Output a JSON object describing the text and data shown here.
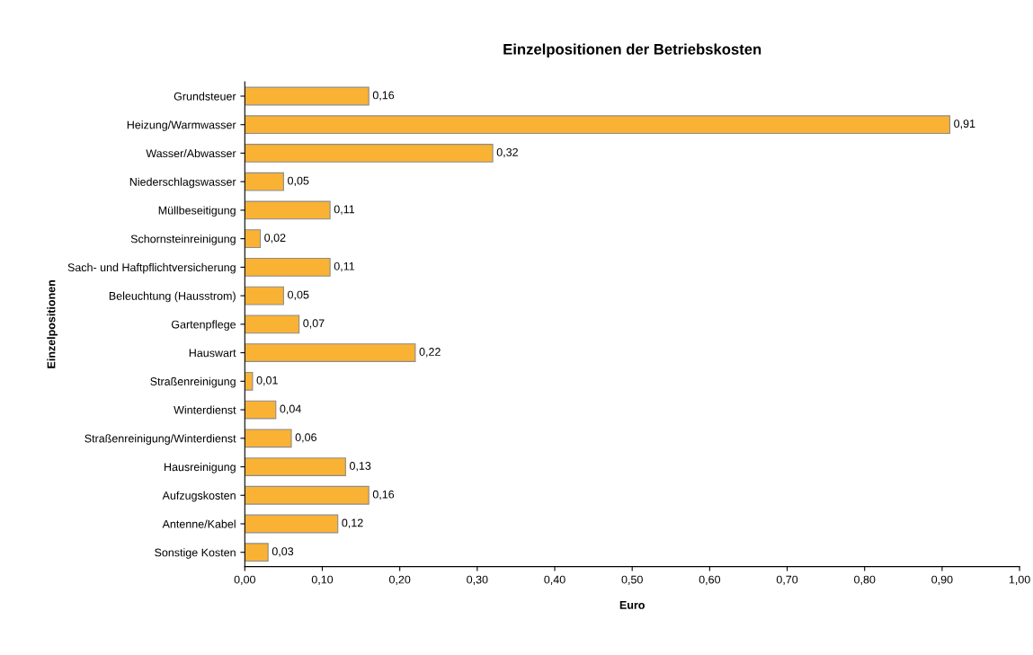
{
  "chart_data": {
    "type": "bar",
    "orientation": "horizontal",
    "title": "Einzelpositionen der Betriebskosten",
    "xlabel": "Euro",
    "ylabel": "Einzelpositionen",
    "categories": [
      "Grundsteuer",
      "Heizung/Warmwasser",
      "Wasser/Abwasser",
      "Niederschlagswasser",
      "Müllbeseitigung",
      "Schornsteinreinigung",
      "Sach- und Haftpflichtversicherung",
      "Beleuchtung (Hausstrom)",
      "Gartenpflege",
      "Hauswart",
      "Straßenreinigung",
      "Winterdienst",
      "Straßenreinigung/Winterdienst",
      "Hausreinigung",
      "Aufzugskosten",
      "Antenne/Kabel",
      "Sonstige Kosten"
    ],
    "values": [
      0.16,
      0.91,
      0.32,
      0.05,
      0.11,
      0.02,
      0.11,
      0.05,
      0.07,
      0.22,
      0.01,
      0.04,
      0.06,
      0.13,
      0.16,
      0.12,
      0.03
    ],
    "value_labels": [
      "0,16",
      "0,91",
      "0,32",
      "0,05",
      "0,11",
      "0,02",
      "0,11",
      "0,05",
      "0,07",
      "0,22",
      "0,01",
      "0,04",
      "0,06",
      "0,13",
      "0,16",
      "0,12",
      "0,03"
    ],
    "color": "#f9b233",
    "xlim": [
      0,
      1
    ],
    "xticks": [
      {
        "value": 0,
        "label": "0,00"
      },
      {
        "value": 0.1,
        "label": "0,10"
      },
      {
        "value": 0.2,
        "label": "0,20"
      },
      {
        "value": 0.3,
        "label": "0,30"
      },
      {
        "value": 0.4,
        "label": "0,40"
      },
      {
        "value": 0.5,
        "label": "0,50"
      },
      {
        "value": 0.6,
        "label": "0,60"
      },
      {
        "value": 0.7,
        "label": "0,70"
      },
      {
        "value": 0.8,
        "label": "0,80"
      },
      {
        "value": 0.9,
        "label": "0,90"
      },
      {
        "value": 1,
        "label": "1,00"
      }
    ],
    "grid": false
  }
}
